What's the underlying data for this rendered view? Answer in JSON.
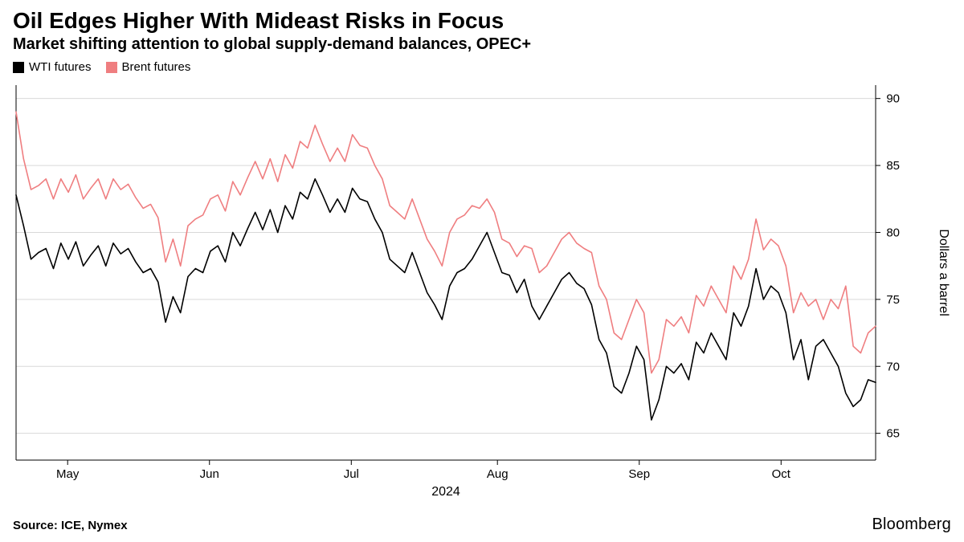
{
  "title": "Oil Edges Higher With Mideast Risks in Focus",
  "subtitle": "Market shifting attention to global supply-demand balances, OPEC+",
  "source": "Source: ICE, Nymex",
  "brand": "Bloomberg",
  "chart": {
    "type": "line",
    "background_color": "#ffffff",
    "grid_color": "#d9d9d9",
    "axis_color": "#000000",
    "text_color": "#000000",
    "x_axis": {
      "label": "2024",
      "ticks": [
        "May",
        "Jun",
        "Jul",
        "Aug",
        "Sep",
        "Oct"
      ],
      "label_fontsize": 16,
      "tick_fontsize": 15
    },
    "y_axis": {
      "position": "right",
      "axis_title": "Dollars a barrel",
      "axis_title_rotation": 90,
      "ticks": [
        65,
        70,
        75,
        80,
        85,
        90
      ],
      "ylim": [
        63,
        91
      ],
      "tick_fontsize": 15,
      "axis_title_fontsize": 16
    },
    "legend_fontsize": 15,
    "line_width": 1.6,
    "series": [
      {
        "name": "WTI futures",
        "color": "#000000",
        "values": [
          82.8,
          80.5,
          78.0,
          78.5,
          78.8,
          77.3,
          79.2,
          78.0,
          79.3,
          77.5,
          78.3,
          79.0,
          77.5,
          79.2,
          78.4,
          78.8,
          77.8,
          77.0,
          77.3,
          76.3,
          73.3,
          75.2,
          74.0,
          76.7,
          77.3,
          77.0,
          78.6,
          79.0,
          77.8,
          80.0,
          79.0,
          80.3,
          81.5,
          80.2,
          81.7,
          80.0,
          82.0,
          81.0,
          83.0,
          82.5,
          84.0,
          82.8,
          81.5,
          82.5,
          81.5,
          83.3,
          82.5,
          82.3,
          81.0,
          80.0,
          78.0,
          77.5,
          77.0,
          78.5,
          77.0,
          75.5,
          74.6,
          73.5,
          76.0,
          77.0,
          77.3,
          78.0,
          79.0,
          80.0,
          78.5,
          77.0,
          76.8,
          75.5,
          76.5,
          74.5,
          73.5,
          74.5,
          75.5,
          76.5,
          77.0,
          76.2,
          75.8,
          74.6,
          72.0,
          71.0,
          68.5,
          68.0,
          69.5,
          71.5,
          70.5,
          66.0,
          67.5,
          70.0,
          69.5,
          70.2,
          69.0,
          71.8,
          71.0,
          72.5,
          71.5,
          70.5,
          74.0,
          73.0,
          74.5,
          77.3,
          75.0,
          76.0,
          75.5,
          74.0,
          70.5,
          72.0,
          69.0,
          71.5,
          72.0,
          71.0,
          70.0,
          68.0,
          67.0,
          67.5,
          69.0,
          68.8
        ]
      },
      {
        "name": "Brent futures",
        "color": "#ef7e80",
        "values": [
          89.0,
          85.5,
          83.2,
          83.5,
          84.0,
          82.5,
          84.0,
          83.0,
          84.3,
          82.5,
          83.3,
          84.0,
          82.5,
          84.0,
          83.2,
          83.6,
          82.6,
          81.8,
          82.1,
          81.1,
          77.8,
          79.5,
          77.5,
          80.5,
          81.0,
          81.3,
          82.5,
          82.8,
          81.6,
          83.8,
          82.8,
          84.1,
          85.3,
          84.0,
          85.5,
          83.8,
          85.8,
          84.8,
          86.8,
          86.3,
          88.0,
          86.6,
          85.3,
          86.3,
          85.3,
          87.3,
          86.5,
          86.3,
          85.0,
          84.0,
          82.0,
          81.5,
          81.0,
          82.5,
          81.0,
          79.5,
          78.6,
          77.5,
          80.0,
          81.0,
          81.3,
          82.0,
          81.8,
          82.5,
          81.5,
          79.5,
          79.2,
          78.2,
          79.0,
          78.8,
          77.0,
          77.5,
          78.5,
          79.5,
          80.0,
          79.2,
          78.8,
          78.5,
          76.0,
          75.0,
          72.5,
          72.0,
          73.5,
          75.0,
          74.0,
          69.5,
          70.5,
          73.5,
          73.0,
          73.7,
          72.5,
          75.3,
          74.5,
          76.0,
          75.0,
          74.0,
          77.5,
          76.5,
          78.0,
          81.0,
          78.7,
          79.5,
          79.0,
          77.5,
          74.0,
          75.5,
          74.5,
          75.0,
          73.5,
          75.0,
          74.3,
          76.0,
          71.5,
          71.0,
          72.5,
          73.0
        ]
      }
    ]
  }
}
